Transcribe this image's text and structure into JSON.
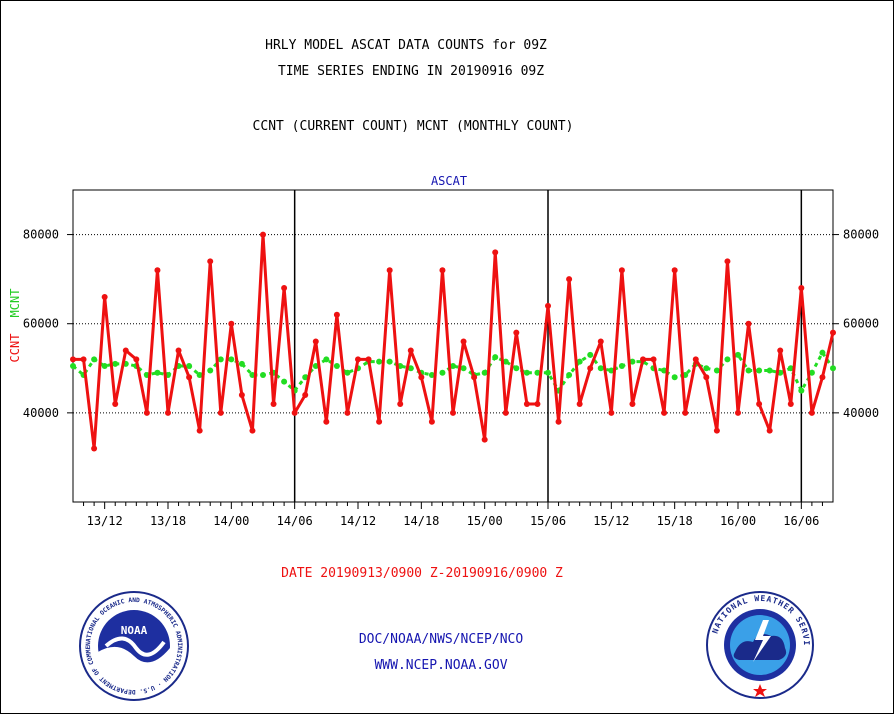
{
  "header": {
    "title_line1": "HRLY MODEL ASCAT DATA COUNTS for 09Z",
    "title_line2": "TIME SERIES ENDING IN 20190916 09Z",
    "subtitle": "CCNT (CURRENT COUNT) MCNT (MONTHLY COUNT)"
  },
  "footer": {
    "date_range": "DATE 20190913/0900 Z-20190916/0900 Z",
    "org_line": "DOC/NOAA/NWS/NCEP/NCO",
    "url_line": "WWW.NCEP.NOAA.GOV"
  },
  "logos": {
    "left": {
      "label": "NOAA",
      "ring_text": "NATIONAL OCEANIC AND ATMOSPHERIC ADMINISTRATION · U.S. DEPARTMENT OF COMMERCE"
    },
    "right": {
      "ring_text": "NATIONAL WEATHER SERVICE"
    }
  },
  "colors": {
    "ccnt": "#ee1111",
    "mcnt": "#22dd22",
    "axis": "#000000",
    "plot_title": "#1515b0"
  },
  "chart_data": {
    "type": "line",
    "title": "ASCAT",
    "ylabel_series1": "CCNT",
    "ylabel_series2": "MCNT",
    "ylim": [
      20000,
      90000
    ],
    "yticks": [
      40000,
      60000,
      80000
    ],
    "x_hours_from_start": [
      0,
      72
    ],
    "x_tick_labels": [
      {
        "hour": 3,
        "label": "13/12"
      },
      {
        "hour": 9,
        "label": "13/18"
      },
      {
        "hour": 15,
        "label": "14/00"
      },
      {
        "hour": 21,
        "label": "14/06"
      },
      {
        "hour": 27,
        "label": "14/12"
      },
      {
        "hour": 33,
        "label": "14/18"
      },
      {
        "hour": 39,
        "label": "15/00"
      },
      {
        "hour": 45,
        "label": "15/06"
      },
      {
        "hour": 51,
        "label": "15/12"
      },
      {
        "hour": 57,
        "label": "15/18"
      },
      {
        "hour": 63,
        "label": "16/00"
      },
      {
        "hour": 69,
        "label": "16/06"
      }
    ],
    "day_boundaries_hours": [
      21,
      45,
      69
    ],
    "grid_y": true,
    "series": [
      {
        "name": "CCNT",
        "values": [
          52000,
          52000,
          32000,
          66000,
          42000,
          54000,
          52000,
          40000,
          72000,
          40000,
          54000,
          48000,
          36000,
          74000,
          40000,
          60000,
          44000,
          36000,
          80000,
          42000,
          68000,
          40000,
          44000,
          56000,
          38000,
          62000,
          40000,
          52000,
          52000,
          38000,
          72000,
          42000,
          54000,
          48000,
          38000,
          72000,
          40000,
          56000,
          48000,
          34000,
          76000,
          40000,
          58000,
          42000,
          42000,
          64000,
          38000,
          70000,
          42000,
          50000,
          56000,
          40000,
          72000,
          42000,
          52000,
          52000,
          40000,
          72000,
          40000,
          52000,
          48000,
          36000,
          74000,
          40000,
          60000,
          42000,
          36000,
          54000,
          42000,
          68000,
          40000,
          48000,
          58000
        ]
      },
      {
        "name": "MCNT",
        "values": [
          50500,
          48500,
          52000,
          50500,
          51000,
          51000,
          50500,
          48500,
          49000,
          48500,
          50500,
          50500,
          48500,
          49500,
          52000,
          52000,
          51000,
          48500,
          48500,
          49000,
          47000,
          45000,
          48000,
          50500,
          52000,
          50500,
          49000,
          50000,
          51500,
          51500,
          51500,
          50500,
          50000,
          49000,
          48500,
          49000,
          50500,
          50000,
          48500,
          49000,
          52500,
          51500,
          50000,
          49000,
          49000,
          49000,
          45000,
          48500,
          51500,
          53000,
          50000,
          49500,
          50500,
          51500,
          51500,
          50000,
          49500,
          48000,
          48500,
          51000,
          50000,
          49500,
          52000,
          53000,
          49500,
          49500,
          49500,
          49000,
          50000,
          45000,
          49000,
          53500,
          50000
        ]
      }
    ]
  }
}
